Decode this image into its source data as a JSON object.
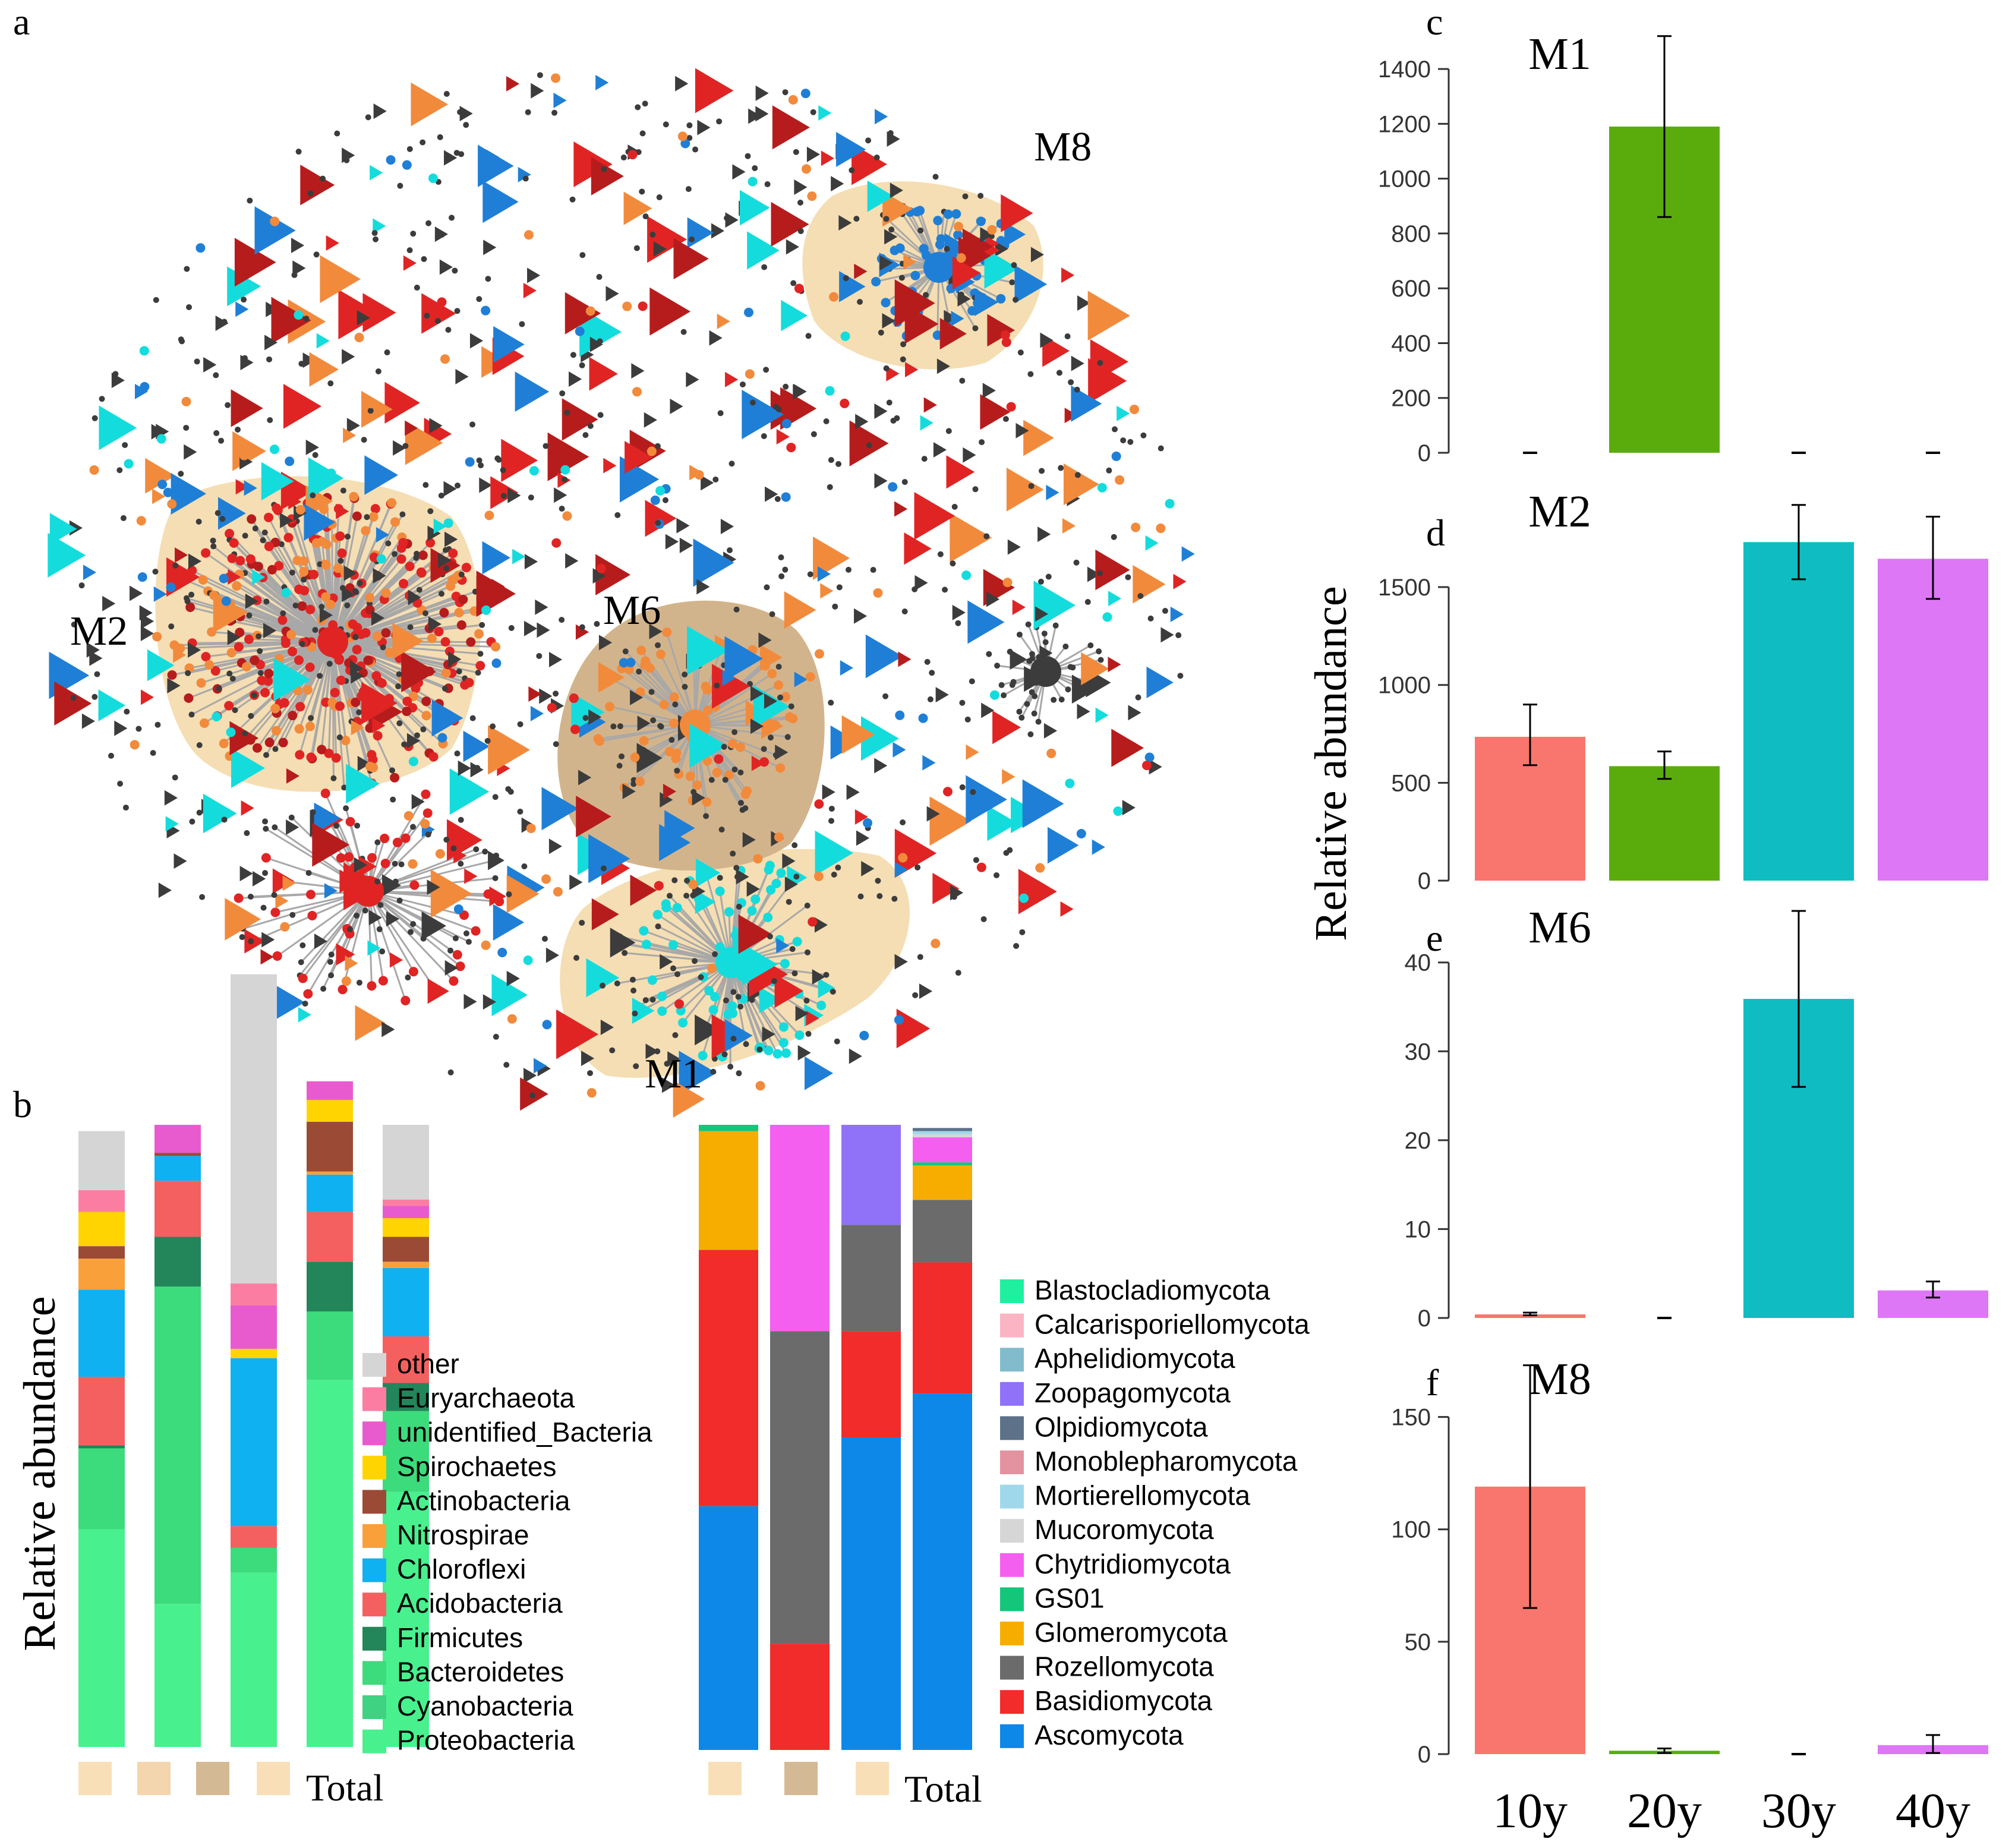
{
  "panel_letters": {
    "a": "a",
    "b": "b",
    "c": "c",
    "d": "d",
    "e": "e",
    "f": "f"
  },
  "network": {
    "module_labels": [
      "M2",
      "M6",
      "M1",
      "M8"
    ],
    "hull_colors": {
      "light": "#f5deb3",
      "dark": "#d2b48c"
    },
    "node_colors": {
      "red": "#e02424",
      "dark_red": "#b71c1c",
      "orange": "#f28a3c",
      "blue": "#1f7fd6",
      "cyan": "#14dcdc",
      "gray": "#3c3c3c",
      "edge": "#a8a8a8"
    }
  },
  "panel_b": {
    "ylabel": "Relative abundance",
    "bar_footer_colors": [
      "#f9dfb8",
      "#f3d6ad",
      "#d4b995",
      "#f9dfb8"
    ],
    "fungal_footer_colors": [
      "#f9dfb8",
      "#d4b995",
      "#f9dfb8"
    ],
    "total_label_left": "Total",
    "total_label_right": "Total"
  },
  "panels_cf_ylabel": "Relative abundance",
  "chart_data": [
    {
      "type": "bar",
      "panel": "b-bacteria",
      "stacked": true,
      "categories": [
        "",
        "",
        "",
        "",
        "Total"
      ],
      "series": [
        {
          "name": "Proteobacteria",
          "color": "#49f08e",
          "values": [
            0.35,
            0.23,
            0.28,
            0.59,
            0.41
          ]
        },
        {
          "name": "Cyanobacteria",
          "color": "#3fd282",
          "values": [
            0.0,
            0.0,
            0.0,
            0.0,
            0.0
          ]
        },
        {
          "name": "Bacteroidetes",
          "color": "#3cdb7c",
          "values": [
            0.13,
            0.51,
            0.04,
            0.11,
            0.13
          ]
        },
        {
          "name": "Firmicutes",
          "color": "#23855a",
          "values": [
            0.005,
            0.08,
            0.0,
            0.08,
            0.045
          ]
        },
        {
          "name": "Acidobacteria",
          "color": "#f46060",
          "values": [
            0.11,
            0.09,
            0.035,
            0.08,
            0.075
          ]
        },
        {
          "name": "Chloroflexi",
          "color": "#10b1f0",
          "values": [
            0.14,
            0.04,
            0.27,
            0.06,
            0.11
          ]
        },
        {
          "name": "Nitrospirae",
          "color": "#f9a03b",
          "values": [
            0.05,
            0.0,
            0.0,
            0.005,
            0.01
          ]
        },
        {
          "name": "Actinobacteria",
          "color": "#9b4a36",
          "values": [
            0.02,
            0.005,
            0.0,
            0.08,
            0.04
          ]
        },
        {
          "name": "Spirochaetes",
          "color": "#ffd400",
          "values": [
            0.055,
            0.0,
            0.015,
            0.035,
            0.03
          ]
        },
        {
          "name": "unidentified_Bacteria",
          "color": "#e85bcf",
          "values": [
            0.0,
            0.045,
            0.07,
            0.03,
            0.02
          ]
        },
        {
          "name": "Euryarchaeota",
          "color": "#fb7ea2",
          "values": [
            0.035,
            0.0,
            0.035,
            0.0,
            0.01
          ]
        },
        {
          "name": "other",
          "color": "#d5d5d5",
          "values": [
            0.095,
            0.0,
            0.497,
            0.0,
            0.12
          ]
        }
      ]
    },
    {
      "type": "bar",
      "panel": "b-fungi",
      "stacked": true,
      "categories": [
        "",
        "",
        "",
        "Total"
      ],
      "series": [
        {
          "name": "Ascomycota",
          "color": "#0d87e8",
          "values": [
            0.39,
            0.0,
            0.5,
            0.57
          ]
        },
        {
          "name": "Basidiomycota",
          "color": "#f22b2b",
          "values": [
            0.41,
            0.17,
            0.17,
            0.21
          ]
        },
        {
          "name": "Rozellomycota",
          "color": "#6b6b6b",
          "values": [
            0.0,
            0.5,
            0.17,
            0.1
          ]
        },
        {
          "name": "Glomeromycota",
          "color": "#f7ad00",
          "values": [
            0.19,
            0.0,
            0.0,
            0.055
          ]
        },
        {
          "name": "GS01",
          "color": "#14c67a",
          "values": [
            0.01,
            0.0,
            0.0,
            0.005
          ]
        },
        {
          "name": "Chytridiomycota",
          "color": "#f45ff0",
          "values": [
            0.0,
            0.33,
            0.0,
            0.04
          ]
        },
        {
          "name": "Mucoromycota",
          "color": "#d6d6d6",
          "values": [
            0.0,
            0.0,
            0.0,
            0.005
          ]
        },
        {
          "name": "Mortierellomycota",
          "color": "#9fd8ea",
          "values": [
            0.0,
            0.0,
            0.0,
            0.005
          ]
        },
        {
          "name": "Monoblepharomycota",
          "color": "#e392a0",
          "values": [
            0.0,
            0.0,
            0.0,
            0.0
          ]
        },
        {
          "name": "Olpidiomycota",
          "color": "#5d7289",
          "values": [
            0.0,
            0.0,
            0.0,
            0.005
          ]
        },
        {
          "name": "Zoopagomycota",
          "color": "#8f72f7",
          "values": [
            0.0,
            0.0,
            0.16,
            0.0
          ]
        },
        {
          "name": "Aphelidiomycota",
          "color": "#82bccc",
          "values": [
            0.0,
            0.0,
            0.0,
            0.0
          ]
        },
        {
          "name": "Calcarisporiellomycota",
          "color": "#fbb4c3",
          "values": [
            0.0,
            0.0,
            0.0,
            0.0
          ]
        },
        {
          "name": "Blastocladiomycota",
          "color": "#1ef0a0",
          "values": [
            0.0,
            0.0,
            0.0,
            0.0
          ]
        }
      ]
    },
    {
      "type": "bar",
      "panel": "c",
      "title": "M1",
      "categories": [
        "10y",
        "20y",
        "30y",
        "40y"
      ],
      "values": [
        0,
        1190,
        0,
        0
      ],
      "err": [
        [
          0,
          0
        ],
        [
          860,
          1520
        ],
        [
          0,
          0
        ],
        [
          0,
          0
        ]
      ],
      "colors": [
        "#f8766d",
        "#5aac0c",
        "#0fbcc2",
        "#de77f6"
      ],
      "ylim": [
        0,
        1500
      ],
      "yticks": [
        "0",
        "200",
        "400",
        "600",
        "800",
        "1000",
        "1200",
        "1400"
      ],
      "ytick_values": [
        0,
        200,
        400,
        600,
        800,
        1000,
        1200,
        1400
      ]
    },
    {
      "type": "bar",
      "panel": "d",
      "title": "M2",
      "categories": [
        "10y",
        "20y",
        "30y",
        "40y"
      ],
      "values": [
        735,
        585,
        1730,
        1645
      ],
      "err": [
        [
          590,
          900
        ],
        [
          520,
          660
        ],
        [
          1540,
          1920
        ],
        [
          1440,
          1860
        ]
      ],
      "colors": [
        "#f8766d",
        "#5aac0c",
        "#0fbcc2",
        "#de77f6"
      ],
      "ylim": [
        0,
        1980
      ],
      "yticks": [
        "0",
        "500",
        "1000",
        "1500"
      ],
      "ytick_values": [
        0,
        500,
        1000,
        1500
      ]
    },
    {
      "type": "bar",
      "panel": "e",
      "title": "M6",
      "categories": [
        "10y",
        "20y",
        "30y",
        "40y"
      ],
      "values": [
        0.4,
        0,
        35.9,
        3.1
      ],
      "err": [
        [
          0.3,
          0.6
        ],
        [
          0,
          0
        ],
        [
          26,
          45.8
        ],
        [
          2.3,
          4.1
        ]
      ],
      "colors": [
        "#f8766d",
        "#5aac0c",
        "#0fbcc2",
        "#de77f6"
      ],
      "ylim": [
        0,
        46
      ],
      "yticks": [
        "0",
        "10",
        "20",
        "30",
        "40"
      ],
      "ytick_values": [
        0,
        10,
        20,
        30,
        40
      ]
    },
    {
      "type": "bar",
      "panel": "f",
      "title": "M8",
      "categories": [
        "10y",
        "20y",
        "30y",
        "40y"
      ],
      "values": [
        119,
        1.5,
        0,
        4
      ],
      "err": [
        [
          65,
          173
        ],
        [
          0.5,
          2.5
        ],
        [
          0,
          0
        ],
        [
          0.5,
          8.5
        ]
      ],
      "colors": [
        "#f8766d",
        "#5aac0c",
        "#0fbcc2",
        "#de77f6"
      ],
      "ylim": [
        0,
        175
      ],
      "yticks": [
        "0",
        "50",
        "100",
        "150"
      ],
      "ytick_values": [
        0,
        50,
        100,
        150
      ]
    }
  ]
}
